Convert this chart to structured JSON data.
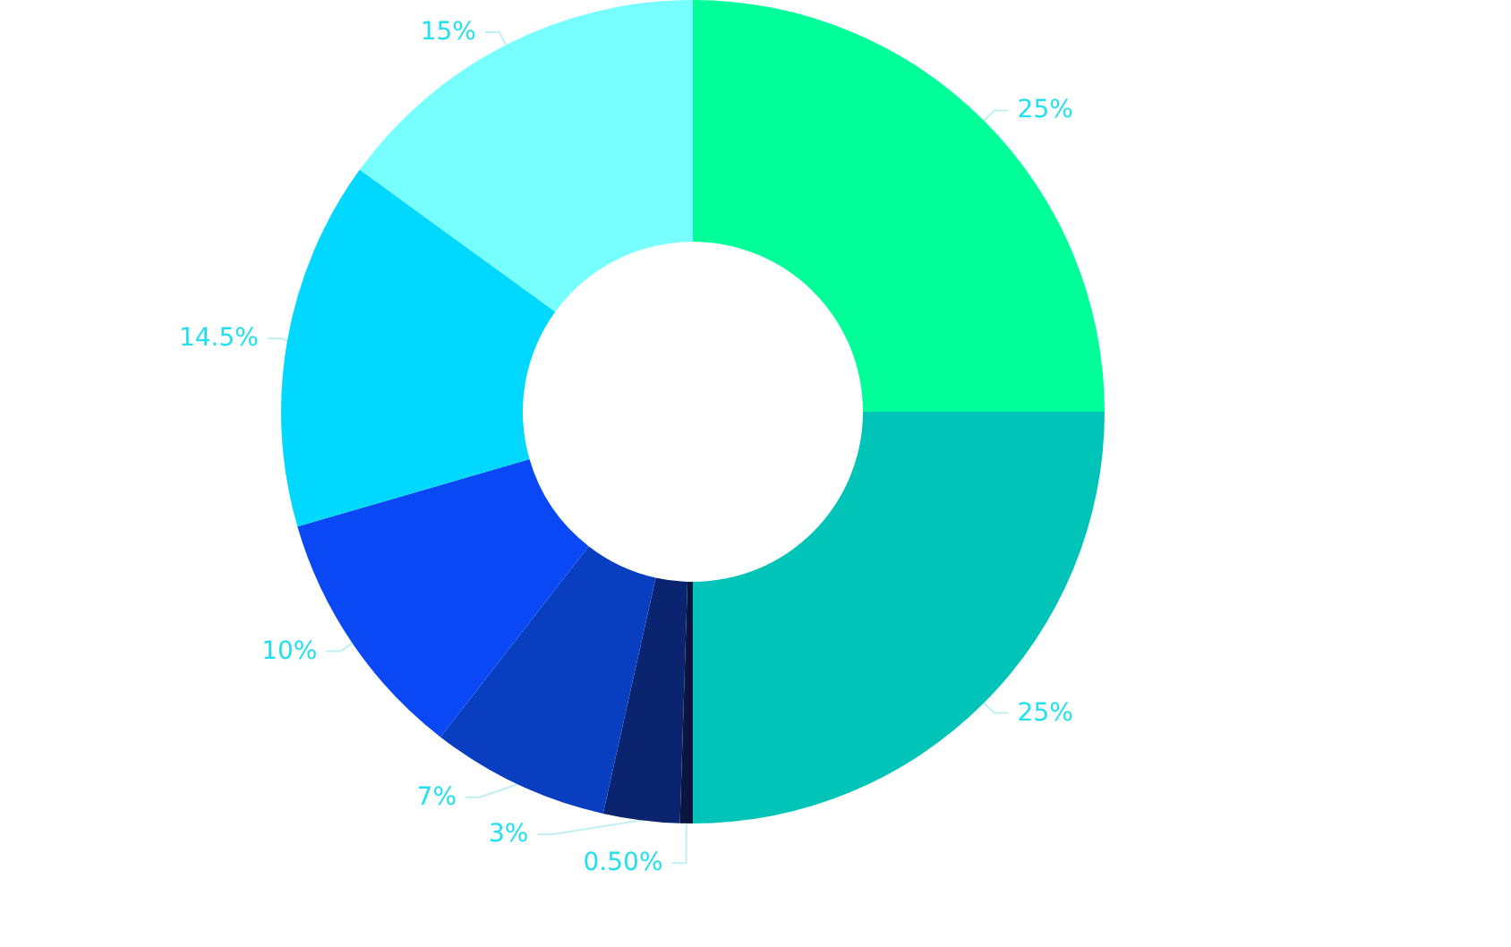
{
  "chart_data": {
    "type": "donut",
    "categories": [
      null,
      null,
      null,
      null,
      null,
      null,
      null,
      null
    ],
    "values": [
      25,
      25,
      0.5,
      3,
      7,
      10,
      14.5,
      15
    ],
    "value_labels": [
      "25%",
      "25%",
      "0.50%",
      "3%",
      "7%",
      "10%",
      "14.5%",
      "15%"
    ],
    "colors": [
      "#00ff99",
      "#00c4b8",
      "#0a1640",
      "#0a2470",
      "#0a3ec0",
      "#0a48f5",
      "#00d8ff",
      "#77ffff"
    ]
  }
}
